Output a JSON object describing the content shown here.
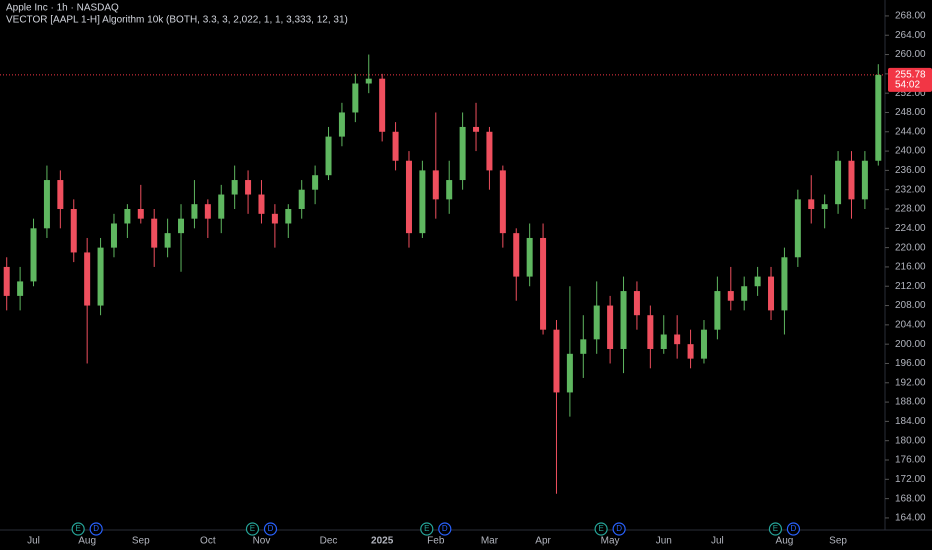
{
  "chart_data": {
    "type": "candlestick",
    "title": "Apple Inc · 1h · NASDAQ",
    "subtitle": "VECTOR [AAPL 1-H] Algorithm 10k (BOTH, 3.3, 3, 2,022, 1, 1, 3,333, 12, 31)",
    "categories": [
      null,
      null,
      "Jul",
      null,
      null,
      null,
      "Aug",
      null,
      null,
      null,
      "Sep",
      null,
      null,
      null,
      null,
      "Oct",
      null,
      null,
      null,
      "Nov",
      null,
      null,
      null,
      null,
      "Dec",
      null,
      null,
      null,
      "2025",
      null,
      null,
      null,
      "Feb",
      null,
      null,
      null,
      "Mar",
      null,
      null,
      null,
      "Apr",
      null,
      null,
      null,
      null,
      "May",
      null,
      null,
      null,
      "Jun",
      null,
      null,
      null,
      "Jul",
      null,
      null,
      null,
      null,
      "Aug",
      null,
      null,
      null,
      "Sep",
      null,
      null,
      null
    ],
    "series": [
      {
        "name": "open",
        "values": [
          216,
          210,
          213,
          224,
          234,
          228,
          219,
          208,
          220,
          225,
          228,
          226,
          220,
          223,
          226,
          229,
          226,
          231,
          234,
          231,
          227,
          225,
          228,
          232,
          235,
          243,
          248,
          254,
          255,
          244,
          238,
          223,
          236,
          230,
          234,
          245,
          244,
          236,
          223,
          214,
          222,
          203,
          190,
          198,
          201,
          208,
          199,
          211,
          206,
          199,
          202,
          200,
          197,
          203,
          211,
          209,
          212,
          214,
          207,
          218,
          230,
          228,
          229,
          238,
          230,
          238
        ]
      },
      {
        "name": "high",
        "values": [
          218,
          216,
          226,
          237,
          236,
          230,
          222,
          222,
          227,
          229,
          233,
          228,
          226,
          229,
          234,
          230,
          233,
          237,
          236,
          234,
          229,
          229,
          234,
          237,
          245,
          250,
          256,
          260,
          256,
          246,
          240,
          238,
          248,
          238,
          248,
          250,
          245,
          237,
          224,
          225,
          225,
          205,
          212,
          206,
          213,
          210,
          214,
          213,
          208,
          206,
          206,
          203,
          205,
          214,
          216,
          214,
          216,
          216,
          220,
          232,
          235,
          231,
          240,
          240,
          240,
          258
        ]
      },
      {
        "name": "low",
        "values": [
          207,
          207,
          212,
          222,
          224,
          217,
          196,
          206,
          218,
          222,
          225,
          216,
          218,
          215,
          224,
          222,
          223,
          228,
          227,
          225,
          220,
          222,
          226,
          229,
          234,
          241,
          246,
          252,
          242,
          236,
          220,
          222,
          226,
          227,
          232,
          240,
          232,
          220,
          209,
          212,
          202,
          169,
          185,
          193,
          198,
          196,
          194,
          203,
          195,
          198,
          197,
          195,
          196,
          201,
          207,
          207,
          210,
          205,
          202,
          216,
          225,
          224,
          227,
          226,
          228,
          237
        ]
      },
      {
        "name": "close",
        "values": [
          210,
          213,
          224,
          234,
          228,
          219,
          208,
          220,
          225,
          228,
          226,
          220,
          223,
          226,
          229,
          226,
          231,
          234,
          231,
          227,
          225,
          228,
          232,
          235,
          243,
          248,
          254,
          255,
          244,
          238,
          223,
          236,
          230,
          234,
          245,
          244,
          236,
          223,
          214,
          222,
          203,
          190,
          198,
          201,
          208,
          199,
          211,
          206,
          199,
          202,
          200,
          197,
          203,
          211,
          209,
          212,
          214,
          207,
          218,
          230,
          228,
          229,
          238,
          230,
          238,
          255.78
        ]
      }
    ],
    "up_color": "#5fb760",
    "down_color": "#ef4f5e",
    "ylim": [
      161.5,
      271.3
    ],
    "yticks": [
      {
        "value": 164,
        "label": "164.00"
      },
      {
        "value": 168,
        "label": "168.00"
      },
      {
        "value": 172,
        "label": "172.00"
      },
      {
        "value": 176,
        "label": "176.00"
      },
      {
        "value": 180,
        "label": "180.00"
      },
      {
        "value": 184,
        "label": "184.00"
      },
      {
        "value": 188,
        "label": "188.00"
      },
      {
        "value": 192,
        "label": "192.00"
      },
      {
        "value": 196,
        "label": "196.00"
      },
      {
        "value": 200,
        "label": "200.00"
      },
      {
        "value": 204,
        "label": "204.00"
      },
      {
        "value": 208,
        "label": "208.00"
      },
      {
        "value": 212,
        "label": "212.00"
      },
      {
        "value": 216,
        "label": "216.00"
      },
      {
        "value": 220,
        "label": "220.00"
      },
      {
        "value": 224,
        "label": "224.00"
      },
      {
        "value": 228,
        "label": "228.00"
      },
      {
        "value": 232,
        "label": "232.00"
      },
      {
        "value": 236,
        "label": "236.00"
      },
      {
        "value": 240,
        "label": "240.00"
      },
      {
        "value": 244,
        "label": "244.00"
      },
      {
        "value": 248,
        "label": "248.00"
      },
      {
        "value": 252,
        "label": "252.00"
      },
      {
        "value": 256,
        "label": "256.00"
      },
      {
        "value": 260,
        "label": "260.00"
      },
      {
        "value": 264,
        "label": "264.00"
      },
      {
        "value": 268,
        "label": "268.00"
      }
    ],
    "last_price": 255.78,
    "last_price_color": "#f23645",
    "countdown": "54:02",
    "earnings_badges": [
      "E",
      "D"
    ]
  }
}
